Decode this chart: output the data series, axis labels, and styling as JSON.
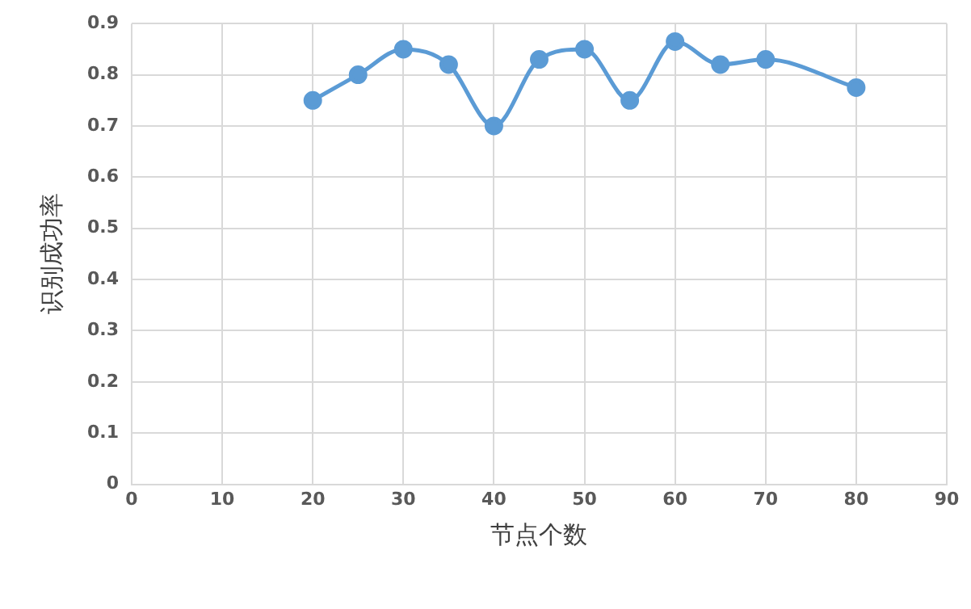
{
  "chart_data": {
    "type": "line",
    "xlabel": "节点个数",
    "ylabel": "识别成功率",
    "series": [
      {
        "color": "#5b9bd5",
        "x": [
          20,
          25,
          30,
          35,
          40,
          45,
          50,
          55,
          60,
          65,
          70,
          80
        ],
        "values": [
          0.75,
          0.8,
          0.85,
          0.82,
          0.7,
          0.83,
          0.85,
          0.75,
          0.865,
          0.82,
          0.83,
          0.775
        ]
      }
    ],
    "xlim": [
      0,
      90
    ],
    "xticks": [
      0,
      10,
      20,
      30,
      40,
      50,
      60,
      70,
      80,
      90
    ],
    "ylim": [
      0,
      0.9
    ],
    "yticks": [
      0,
      0.1,
      0.2,
      0.3,
      0.4,
      0.5,
      0.6,
      0.7,
      0.8,
      0.9
    ],
    "grid": true,
    "marker": "circle",
    "legend": false
  }
}
